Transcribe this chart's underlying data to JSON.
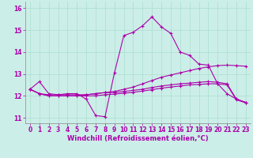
{
  "xlabel": "Windchill (Refroidissement éolien,°C)",
  "background_color": "#cceee8",
  "grid_color": "#aaddcc",
  "line_color": "#aa00aa",
  "xlim": [
    -0.5,
    23.5
  ],
  "ylim": [
    10.75,
    16.3
  ],
  "yticks": [
    11,
    12,
    13,
    14,
    15,
    16
  ],
  "xticks": [
    0,
    1,
    2,
    3,
    4,
    5,
    6,
    7,
    8,
    9,
    10,
    11,
    12,
    13,
    14,
    15,
    16,
    17,
    18,
    19,
    20,
    21,
    22,
    23
  ],
  "line1_x": [
    0,
    1,
    2,
    3,
    4,
    5,
    6,
    7,
    8,
    9,
    10,
    11,
    12,
    13,
    14,
    15,
    16,
    17,
    18,
    19,
    20,
    21,
    22,
    23
  ],
  "line1_y": [
    12.3,
    12.65,
    12.1,
    12.05,
    12.1,
    12.1,
    11.85,
    11.1,
    11.05,
    13.05,
    14.75,
    14.9,
    15.2,
    15.6,
    15.15,
    14.85,
    14.0,
    13.85,
    13.45,
    13.4,
    12.55,
    12.1,
    11.85,
    11.7
  ],
  "line2_x": [
    0,
    1,
    2,
    3,
    4,
    5,
    6,
    7,
    8,
    9,
    10,
    11,
    12,
    13,
    14,
    15,
    16,
    17,
    18,
    19,
    20,
    21,
    22,
    23
  ],
  "line2_y": [
    12.3,
    12.1,
    12.05,
    12.05,
    12.05,
    12.05,
    12.05,
    12.1,
    12.15,
    12.2,
    12.3,
    12.4,
    12.55,
    12.7,
    12.85,
    12.95,
    13.05,
    13.15,
    13.25,
    13.32,
    13.38,
    13.4,
    13.38,
    13.35
  ],
  "line3_x": [
    0,
    1,
    2,
    3,
    4,
    5,
    6,
    7,
    8,
    9,
    10,
    11,
    12,
    13,
    14,
    15,
    16,
    17,
    18,
    19,
    20,
    21,
    22,
    23
  ],
  "line3_y": [
    12.3,
    12.1,
    12.0,
    12.0,
    12.0,
    12.0,
    12.05,
    12.1,
    12.15,
    12.15,
    12.2,
    12.25,
    12.3,
    12.38,
    12.45,
    12.5,
    12.55,
    12.58,
    12.62,
    12.65,
    12.62,
    12.55,
    11.85,
    11.7
  ],
  "line4_x": [
    0,
    1,
    2,
    3,
    4,
    5,
    6,
    7,
    8,
    9,
    10,
    11,
    12,
    13,
    14,
    15,
    16,
    17,
    18,
    19,
    20,
    21,
    22,
    23
  ],
  "line4_y": [
    12.3,
    12.1,
    12.0,
    12.0,
    12.0,
    12.0,
    12.0,
    12.0,
    12.05,
    12.08,
    12.12,
    12.16,
    12.22,
    12.28,
    12.35,
    12.4,
    12.45,
    12.5,
    12.52,
    12.55,
    12.55,
    12.5,
    11.82,
    11.68
  ],
  "tick_fontsize": 5.5,
  "xlabel_fontsize": 6.0
}
